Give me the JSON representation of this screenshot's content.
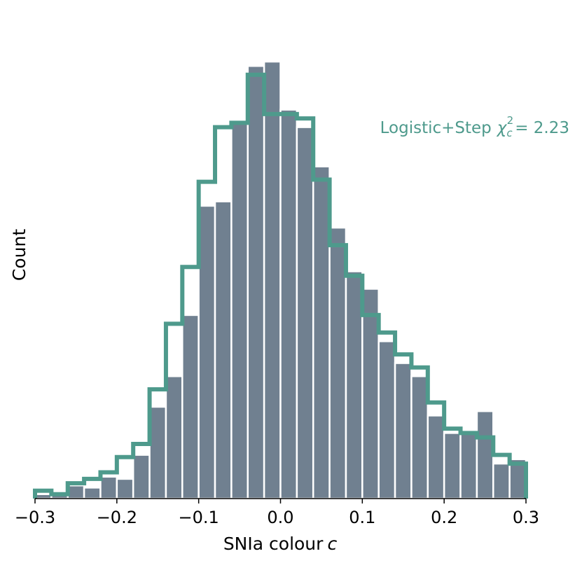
{
  "chart_data": {
    "type": "bar",
    "xlabel": "SNIa colour",
    "xlabel_var": "c",
    "ylabel": "Count",
    "xlim": [
      -0.3,
      0.3
    ],
    "ylim": [
      0,
      100
    ],
    "xticks": [
      -0.3,
      -0.2,
      -0.1,
      0.0,
      0.1,
      0.2,
      0.3
    ],
    "xtick_labels": [
      "−0.3",
      "−0.2",
      "−0.1",
      "0.0",
      "0.1",
      "0.2",
      "0.3"
    ],
    "bin_edges": [
      -0.3,
      -0.28,
      -0.26,
      -0.24,
      -0.22,
      -0.2,
      -0.18,
      -0.16,
      -0.14,
      -0.12,
      -0.1,
      -0.08,
      -0.06,
      -0.04,
      -0.02,
      0.0,
      0.02,
      0.04,
      0.06,
      0.08,
      0.1,
      0.12,
      0.14,
      0.16,
      0.18,
      0.2,
      0.22,
      0.24,
      0.26,
      0.28,
      0.3
    ],
    "series": [
      {
        "kind": "histogram",
        "color": "#708090",
        "values": [
          1,
          1,
          3,
          2.5,
          5,
          4.5,
          10,
          21,
          28,
          42,
          67,
          68,
          86,
          99,
          100,
          89,
          85,
          76,
          62,
          52,
          48,
          36,
          31,
          28,
          19,
          15,
          15,
          20,
          8,
          9
        ]
      },
      {
        "name": "Logistic+Step",
        "kind": "step",
        "color": "#4e9a8c",
        "values": [
          1.8,
          1,
          3.5,
          4.5,
          6,
          9.5,
          12.5,
          25,
          40,
          53,
          72.5,
          85,
          86,
          97,
          88,
          88,
          87,
          73,
          58,
          51,
          42,
          38,
          33,
          30,
          22,
          16,
          15,
          14,
          10,
          8
        ],
        "annotation": "Logistic+Step",
        "annotation_stat": "χ",
        "annotation_sub": "c",
        "annotation_sup": "2",
        "annotation_value": "= 2.23"
      }
    ]
  }
}
